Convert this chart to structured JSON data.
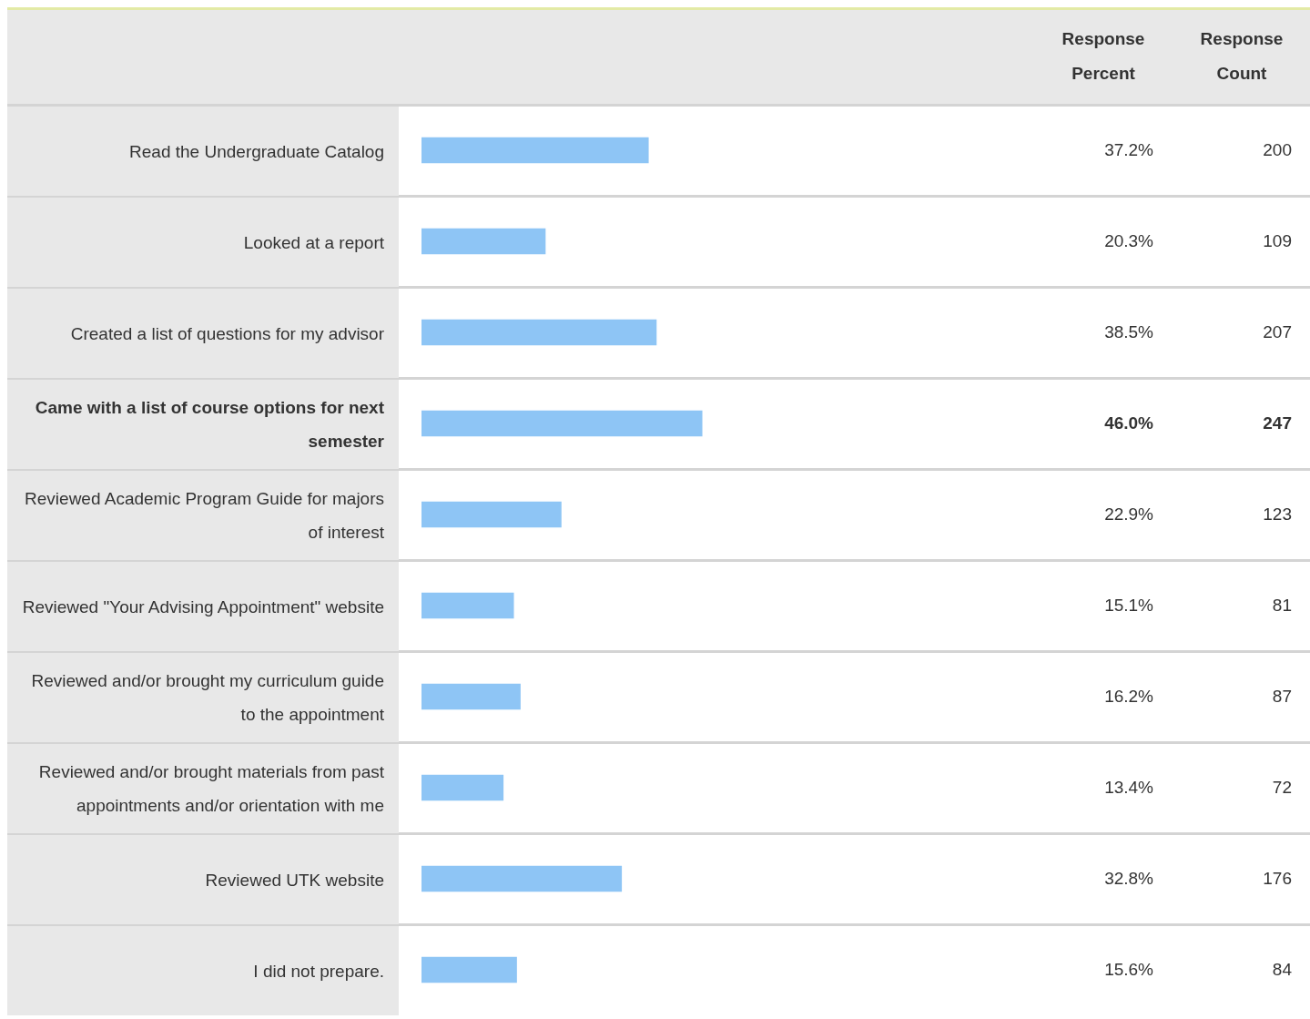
{
  "chart_data": {
    "type": "bar",
    "orientation": "horizontal",
    "tick_labels": "y",
    "categories": [
      "Read the Undergraduate Catalog",
      "Looked at a report",
      "Created a list of questions for my advisor",
      "Came with a list of course options for next semester",
      "Reviewed Academic Program Guide for majors of interest",
      "Reviewed \"Your Advising Appointment\" website",
      "Reviewed and/or brought my curriculum guide to the appointment",
      "Reviewed and/or brought materials from past appointments and/or orientation with me",
      "Reviewed UTK website",
      "I did not prepare."
    ],
    "series": [
      {
        "name": "Response Percent",
        "color": "#8ec5f5",
        "values": [
          37.2,
          20.3,
          38.5,
          46.0,
          22.9,
          15.1,
          16.2,
          13.4,
          32.8,
          15.6
        ],
        "value_labels": [
          "37.2%",
          "20.3%",
          "38.5%",
          "46.0%",
          "22.9%",
          "15.1%",
          "16.2%",
          "13.4%",
          "32.8%",
          "15.6%"
        ]
      }
    ],
    "annotations": [
      "Response Count",
      "200",
      "109",
      "207",
      "247",
      "123",
      "81",
      "87",
      "72",
      "176",
      "84"
    ]
  }
}
